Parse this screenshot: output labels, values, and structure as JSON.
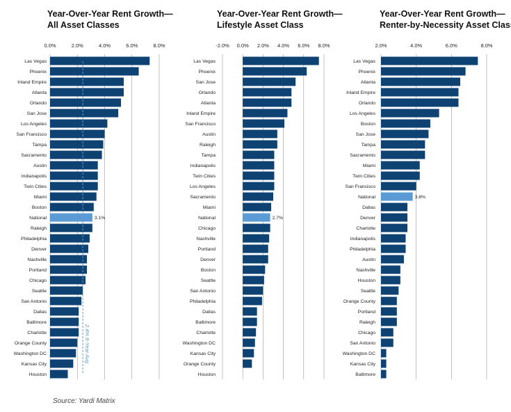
{
  "source": "Source: Yardi Matrix",
  "colors": {
    "bar": "#0d4273",
    "highlight": "#5b9bd5",
    "axis": "#999999",
    "text": "#222222",
    "avg": "#5b9bd5"
  },
  "chart_data": [
    {
      "type": "bar",
      "orientation": "horizontal",
      "title_lines": [
        "Year-Over-Year Rent Growth—",
        "All Asset Classes"
      ],
      "xlim": [
        0,
        8
      ],
      "ticks": [
        0,
        2,
        4,
        6,
        8
      ],
      "tick_labels": [
        "0.0%",
        "2.0%",
        "4.0%",
        "6.0%",
        "8.0%"
      ],
      "highlight": "National",
      "highlight_label": "3.1%",
      "reference_line": {
        "value": 2.4,
        "label": "2.4% 8-Year Avg"
      },
      "categories": [
        "Las Vegas",
        "Phoenix",
        "Inland Empire",
        "Atlanta",
        "Orlando",
        "San Jose",
        "Los Angeles",
        "San Francisco",
        "Tampa",
        "Sacramento",
        "Austin",
        "Indianapolis",
        "Twin Cities",
        "Miami",
        "Boston",
        "National",
        "Raleigh",
        "Philadelphia",
        "Denver",
        "Nashville",
        "Portland",
        "Chicago",
        "Seattle",
        "San Antonio",
        "Dallas",
        "Baltimore",
        "Charlotte",
        "Orange County",
        "Washington DC",
        "Kansas City",
        "Houston"
      ],
      "values": [
        7.3,
        6.5,
        5.4,
        5.4,
        5.2,
        5.0,
        4.2,
        4.0,
        3.9,
        3.8,
        3.5,
        3.5,
        3.5,
        3.4,
        3.2,
        3.1,
        3.1,
        2.9,
        2.8,
        2.7,
        2.7,
        2.6,
        2.4,
        2.3,
        2.1,
        2.1,
        2.1,
        2.0,
        1.9,
        1.7,
        1.3
      ]
    },
    {
      "type": "bar",
      "orientation": "horizontal",
      "title_lines": [
        "Year-Over-Year Rent Growth—",
        "Lifestyle Asset Class"
      ],
      "xlim": [
        -2,
        8
      ],
      "ticks": [
        -2,
        0,
        2,
        4,
        6,
        8
      ],
      "tick_labels": [
        "-2.0%",
        "0.0%",
        "2.0%",
        "4.0%",
        "6.0%",
        "8.0%"
      ],
      "highlight": "National",
      "highlight_label": "2.7%",
      "categories": [
        "Las Vegas",
        "Phoenix",
        "San Jose",
        "Orlando",
        "Atlanta",
        "Inland Empire",
        "San Francisco",
        "Austin",
        "Raleigh",
        "Tampa",
        "Indianapolis",
        "Twin Cities",
        "Los Angeles",
        "Sacramento",
        "Miami",
        "National",
        "Chicago",
        "Nashville",
        "Portland",
        "Denver",
        "Boston",
        "Seattle",
        "San Antonio",
        "Philadelphia",
        "Dallas",
        "Baltimore",
        "Charlotte",
        "Washington DC",
        "Kansas City",
        "Orange County",
        "Houston"
      ],
      "values": [
        7.5,
        6.3,
        5.2,
        4.8,
        4.8,
        4.4,
        4.1,
        3.4,
        3.4,
        3.1,
        3.1,
        3.1,
        3.1,
        3.0,
        2.8,
        2.7,
        2.7,
        2.6,
        2.5,
        2.5,
        2.2,
        2.1,
        2.0,
        1.9,
        1.4,
        1.4,
        1.3,
        1.2,
        1.1,
        0.9,
        0.0
      ]
    },
    {
      "type": "bar",
      "orientation": "horizontal",
      "title_lines": [
        "Year-Over-Year Rent Growth—",
        "Renter-by-Necessity Asset Class"
      ],
      "xlim": [
        2,
        8
      ],
      "ticks": [
        2,
        4,
        6,
        8
      ],
      "tick_labels": [
        "2.0%",
        "4.0%",
        "6.0%",
        "8.0%"
      ],
      "highlight": "National",
      "highlight_label": "3.8%",
      "categories": [
        "Las Vegas",
        "Phoenix",
        "Atlanta",
        "Inland Empire",
        "Orlando",
        "Los Angeles",
        "Boston",
        "San Jose",
        "Tampa",
        "Sacramento",
        "Miami",
        "Twin Cities",
        "San Francisco",
        "National",
        "Dallas",
        "Denver",
        "Charlotte",
        "Indianapolis",
        "Philadelphia",
        "Austin",
        "Nashville",
        "Houston",
        "Seattle",
        "Orange County",
        "Portland",
        "Raleigh",
        "Chicago",
        "San Antonio",
        "Washington DC",
        "Kansas City",
        "Baltimore"
      ],
      "values": [
        7.5,
        6.8,
        6.5,
        6.4,
        6.4,
        5.3,
        4.8,
        4.7,
        4.5,
        4.5,
        4.2,
        4.2,
        4.0,
        3.8,
        3.5,
        3.5,
        3.5,
        3.4,
        3.4,
        3.3,
        3.1,
        3.1,
        3.0,
        2.9,
        2.9,
        2.9,
        2.7,
        2.7,
        2.3,
        2.3,
        2.3
      ]
    }
  ]
}
